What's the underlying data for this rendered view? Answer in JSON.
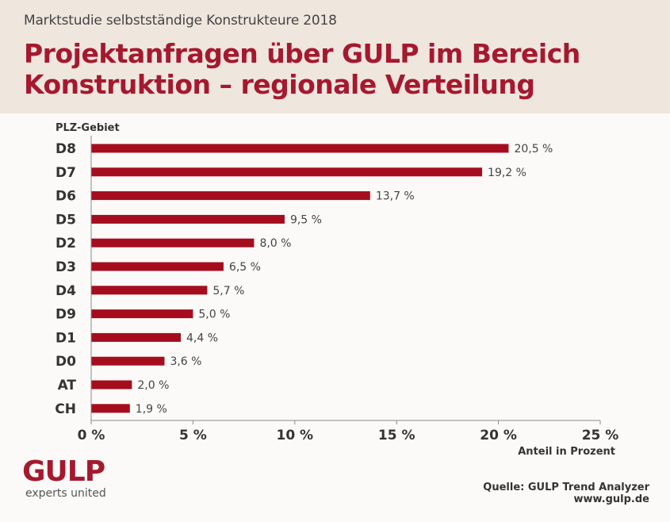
{
  "header": {
    "kicker": "Marktstudie selbstständige Konstrukteure 2018",
    "title_line1": "Projektanfragen über GULP im Bereich",
    "title_line2": "Konstruktion – regionale Verteilung"
  },
  "chart_data": {
    "type": "bar",
    "orientation": "horizontal",
    "categories": [
      "D8",
      "D7",
      "D6",
      "D5",
      "D2",
      "D3",
      "D4",
      "D9",
      "D1",
      "D0",
      "AT",
      "CH"
    ],
    "values": [
      20.5,
      19.2,
      13.7,
      9.5,
      8.0,
      6.5,
      5.7,
      5.0,
      4.4,
      3.6,
      2.0,
      1.9
    ],
    "value_labels": [
      "20,5 %",
      "19,2 %",
      "13,7 %",
      "9,5 %",
      "8,0 %",
      "6,5 %",
      "5,7 %",
      "5,0 %",
      "4,4 %",
      "3,6 %",
      "2,0 %",
      "1,9 %"
    ],
    "category_axis_label": "PLZ-Gebiet",
    "value_axis_label": "Anteil in Prozent",
    "xlim": [
      0,
      25
    ],
    "ticks": [
      0,
      5,
      10,
      15,
      20,
      25
    ],
    "tick_labels": [
      "0 %",
      "5 %",
      "10 %",
      "15 %",
      "20 %",
      "25 %"
    ],
    "bar_color": "#a50d1e",
    "grid": false
  },
  "footer": {
    "logo": "GULP",
    "tagline": "experts united",
    "source": "Quelle: GULP Trend Analyzer",
    "url": "www.gulp.de"
  }
}
